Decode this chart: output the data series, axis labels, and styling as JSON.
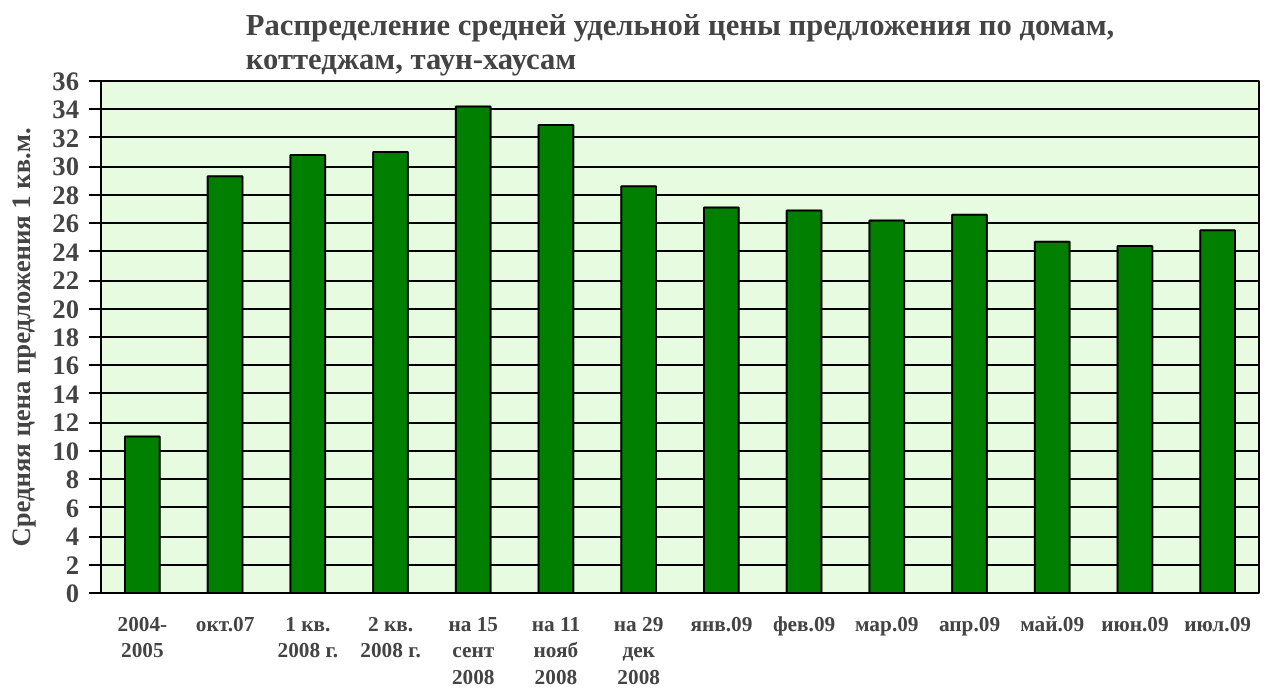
{
  "chart_data": {
    "type": "bar",
    "title": "Распределение средней удельной цены предложения по домам,\nкоттеджам, таун-хаусам",
    "ylabel": "Средняя цена предложения 1 кв.м.",
    "categories": [
      "2004-\n2005",
      "окт.07",
      "1 кв.\n2008 г.",
      "2 кв.\n2008 г.",
      "на 15\nсент\n2008",
      "на 11\nнояб\n2008",
      "на 29\nдек\n2008",
      "янв.09",
      "фев.09",
      "мар.09",
      "апр.09",
      "май.09",
      "июн.09",
      "июл.09"
    ],
    "values": [
      11.0,
      29.3,
      30.8,
      31.0,
      34.2,
      32.9,
      28.6,
      27.1,
      26.9,
      26.2,
      26.6,
      24.7,
      24.4,
      25.5
    ],
    "color": "#007f00",
    "ylim": [
      0,
      36
    ],
    "yticks": [
      0,
      2,
      4,
      6,
      8,
      10,
      12,
      14,
      16,
      18,
      20,
      22,
      24,
      26,
      28,
      30,
      32,
      34,
      36
    ],
    "grid": "y"
  }
}
